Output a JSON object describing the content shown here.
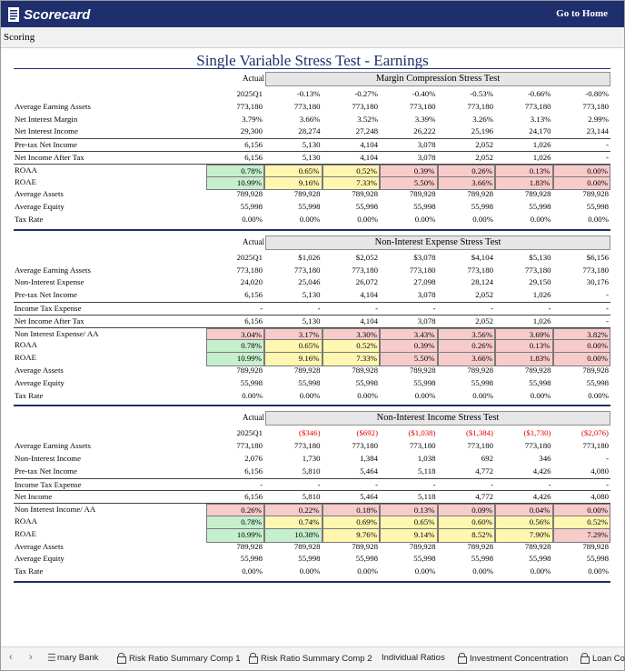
{
  "topbar": {
    "logo_text": "Scorecard",
    "home_label": "Go to Home"
  },
  "subbar": {
    "label": "Scoring"
  },
  "page_title": "Single Variable Stress Test - Earnings",
  "sections": [
    {
      "actual_label": "Actual",
      "test_title": "Margin Compression Stress Test",
      "headers": [
        "2025Q1",
        "-0.13%",
        "-0.27%",
        "-0.40%",
        "-0.53%",
        "-0.66%",
        "-0.80%"
      ],
      "header_neg": false,
      "rows": [
        {
          "label": "Average Earning Assets",
          "values": [
            "773,180",
            "773,180",
            "773,180",
            "773,180",
            "773,180",
            "773,180",
            "773,180"
          ]
        },
        {
          "label": "Net Interest Margin",
          "values": [
            "3.79%",
            "3.66%",
            "3.52%",
            "3.39%",
            "3.26%",
            "3.13%",
            "2.99%"
          ]
        },
        {
          "label": "Net Interest Income",
          "values": [
            "29,300",
            "28,274",
            "27,248",
            "26,222",
            "25,196",
            "24,170",
            "23,144"
          ]
        },
        {
          "label": "Pre-tax Net Income",
          "values": [
            "6,156",
            "5,130",
            "4,104",
            "3,078",
            "2,052",
            "1,026",
            "-"
          ],
          "rule": true
        },
        {
          "label": "Net Income After Tax",
          "values": [
            "6,156",
            "5,130",
            "4,104",
            "3,078",
            "2,052",
            "1,026",
            "-"
          ],
          "rule": true
        },
        {
          "label": "ROAA",
          "values": [
            "0.78%",
            "0.65%",
            "0.52%",
            "0.39%",
            "0.26%",
            "0.13%",
            "0.00%"
          ],
          "colors": [
            "g",
            "y",
            "y",
            "r",
            "r",
            "r",
            "r"
          ],
          "rule": true
        },
        {
          "label": "ROAE",
          "values": [
            "10.99%",
            "9.16%",
            "7.33%",
            "5.50%",
            "3.66%",
            "1.83%",
            "0.00%"
          ],
          "colors": [
            "g",
            "y",
            "y",
            "r",
            "r",
            "r",
            "r"
          ]
        },
        {
          "label": "Average Assets",
          "values": [
            "789,928",
            "789,928",
            "789,928",
            "789,928",
            "789,928",
            "789,928",
            "789,928"
          ]
        },
        {
          "label": "Average Equity",
          "values": [
            "55,998",
            "55,998",
            "55,998",
            "55,998",
            "55,998",
            "55,998",
            "55,998"
          ]
        },
        {
          "label": "Tax Rate",
          "values": [
            "0.00%",
            "0.00%",
            "0.00%",
            "0.00%",
            "0.00%",
            "0.00%",
            "0.00%"
          ]
        }
      ]
    },
    {
      "actual_label": "Actual",
      "test_title": "Non-Interest Expense Stress Test",
      "headers": [
        "2025Q1",
        "$1,026",
        "$2,052",
        "$3,078",
        "$4,104",
        "$5,130",
        "$6,156"
      ],
      "header_neg": false,
      "rows": [
        {
          "label": "Average Earning Assets",
          "values": [
            "773,180",
            "773,180",
            "773,180",
            "773,180",
            "773,180",
            "773,180",
            "773,180"
          ]
        },
        {
          "label": "Non-Interest Expense",
          "values": [
            "24,020",
            "25,046",
            "26,072",
            "27,098",
            "28,124",
            "29,150",
            "30,176"
          ]
        },
        {
          "label": "Pre-tax Net Income",
          "values": [
            "6,156",
            "5,130",
            "4,104",
            "3,078",
            "2,052",
            "1,026",
            "-"
          ]
        },
        {
          "label": "Income Tax Expense",
          "values": [
            "-",
            "-",
            "-",
            "-",
            "-",
            "-",
            "-"
          ],
          "rule": true
        },
        {
          "label": "Net Income After Tax",
          "values": [
            "6,156",
            "5,130",
            "4,104",
            "3,078",
            "2,052",
            "1,026",
            "-"
          ],
          "rule": true
        },
        {
          "label": "Non Interest Expense/ AA",
          "values": [
            "3.04%",
            "3.17%",
            "3.30%",
            "3.43%",
            "3.56%",
            "3.69%",
            "3.82%"
          ],
          "colors": [
            "r",
            "r",
            "r",
            "r",
            "r",
            "r",
            "r"
          ],
          "rule": true
        },
        {
          "label": "ROAA",
          "values": [
            "0.78%",
            "0.65%",
            "0.52%",
            "0.39%",
            "0.26%",
            "0.13%",
            "0.00%"
          ],
          "colors": [
            "g",
            "y",
            "y",
            "r",
            "r",
            "r",
            "r"
          ]
        },
        {
          "label": "ROAE",
          "values": [
            "10.99%",
            "9.16%",
            "7.33%",
            "5.50%",
            "3.66%",
            "1.83%",
            "0.00%"
          ],
          "colors": [
            "g",
            "y",
            "y",
            "r",
            "r",
            "r",
            "r"
          ]
        },
        {
          "label": "Average Assets",
          "values": [
            "789,928",
            "789,928",
            "789,928",
            "789,928",
            "789,928",
            "789,928",
            "789,928"
          ]
        },
        {
          "label": "Average Equity",
          "values": [
            "55,998",
            "55,998",
            "55,998",
            "55,998",
            "55,998",
            "55,998",
            "55,998"
          ]
        },
        {
          "label": "Tax Rate",
          "values": [
            "0.00%",
            "0.00%",
            "0.00%",
            "0.00%",
            "0.00%",
            "0.00%",
            "0.00%"
          ]
        }
      ]
    },
    {
      "actual_label": "Actual",
      "test_title": "Non-Interest Income Stress Test",
      "headers": [
        "2025Q1",
        "($346)",
        "($692)",
        "($1,038)",
        "($1,384)",
        "($1,730)",
        "($2,076)"
      ],
      "header_neg": true,
      "rows": [
        {
          "label": "Average Earning Assets",
          "values": [
            "773,180",
            "773,180",
            "773,180",
            "773,180",
            "773,180",
            "773,180",
            "773,180"
          ]
        },
        {
          "label": "Non-Interest Income",
          "values": [
            "2,076",
            "1,730",
            "1,384",
            "1,038",
            "692",
            "346",
            "-"
          ]
        },
        {
          "label": "Pre-tax Net Income",
          "values": [
            "6,156",
            "5,810",
            "5,464",
            "5,118",
            "4,772",
            "4,426",
            "4,080"
          ]
        },
        {
          "label": "Income Tax Expense",
          "values": [
            "-",
            "-",
            "-",
            "-",
            "-",
            "-",
            "-"
          ],
          "rule": true
        },
        {
          "label": "Net Income",
          "values": [
            "6,156",
            "5,810",
            "5,464",
            "5,118",
            "4,772",
            "4,426",
            "4,080"
          ],
          "rule": true
        },
        {
          "label": "Non Interest Income/ AA",
          "values": [
            "0.26%",
            "0.22%",
            "0.18%",
            "0.13%",
            "0.09%",
            "0.04%",
            "0.00%"
          ],
          "colors": [
            "r",
            "r",
            "r",
            "r",
            "r",
            "r",
            "r"
          ],
          "rule": true
        },
        {
          "label": "ROAA",
          "values": [
            "0.78%",
            "0.74%",
            "0.69%",
            "0.65%",
            "0.60%",
            "0.56%",
            "0.52%"
          ],
          "colors": [
            "g",
            "y",
            "y",
            "y",
            "y",
            "y",
            "y"
          ]
        },
        {
          "label": "ROAE",
          "values": [
            "10.99%",
            "10.38%",
            "9.76%",
            "9.14%",
            "8.52%",
            "7.90%",
            "7.29%"
          ],
          "colors": [
            "g",
            "g",
            "y",
            "y",
            "y",
            "y",
            "r"
          ]
        },
        {
          "label": "Average Assets",
          "values": [
            "789,928",
            "789,928",
            "789,928",
            "789,928",
            "789,928",
            "789,928",
            "789,928"
          ]
        },
        {
          "label": "Average Equity",
          "values": [
            "55,998",
            "55,998",
            "55,998",
            "55,998",
            "55,998",
            "55,998",
            "55,998"
          ]
        },
        {
          "label": "Tax Rate",
          "values": [
            "0.00%",
            "0.00%",
            "0.00%",
            "0.00%",
            "0.00%",
            "0.00%",
            "0.00%"
          ]
        }
      ]
    }
  ],
  "sheet_tabs": [
    {
      "label": "mary Bank",
      "locked": false
    },
    {
      "label": "Risk Ratio Summary Comp 1",
      "locked": true
    },
    {
      "label": "Risk Ratio Summary Comp 2",
      "locked": true
    },
    {
      "label": "Individual Ratios",
      "locked": false
    },
    {
      "label": "Investment Concentration",
      "locked": true
    },
    {
      "label": "Loan Co",
      "locked": true
    }
  ],
  "colors": {
    "header_navy": "#1f2f6e",
    "cell_green": "#c6efce",
    "cell_yellow": "#fff6b0",
    "cell_red": "#f8cbcb",
    "negative_text": "#e00000"
  }
}
